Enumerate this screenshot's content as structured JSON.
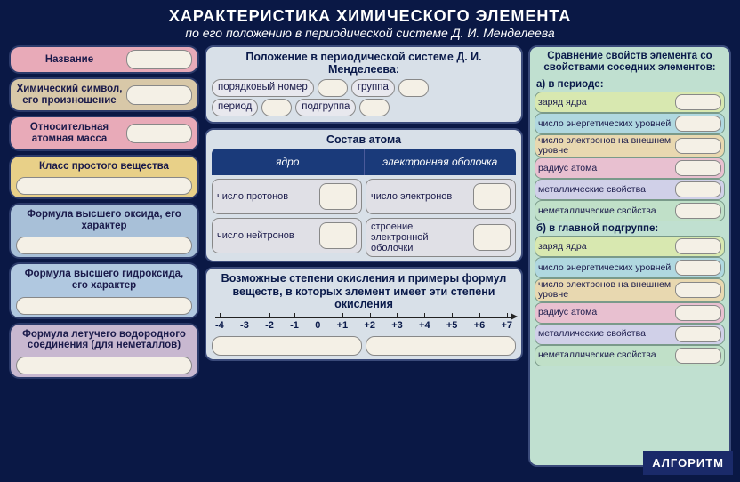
{
  "colors": {
    "page_bg": "#0a1845",
    "panel_bg": "#d8e0e8",
    "right_bg": "#c0e0d0",
    "field_bg": "#f4f0e6",
    "header_nucleus": "#1a3a7a",
    "left_boxes": [
      "#e8aab8",
      "#d8c8a8",
      "#e8d088",
      "#a8c0d8",
      "#b0c8e0",
      "#b8d0a0",
      "#c8b8d0"
    ],
    "right_rows": [
      "#d8e8b0",
      "#b0d8e0",
      "#e8d8b0",
      "#e8c0d0",
      "#d0d0e8",
      "#c0e0c8"
    ]
  },
  "header": {
    "title": "ХАРАКТЕРИСТИКА ХИМИЧЕСКОГО ЭЛЕМЕНТА",
    "subtitle": "по его положению в периодической системе Д. И. Менделеева"
  },
  "left": [
    {
      "title": "Название",
      "has_side_value": true
    },
    {
      "title": "Химический символ, его произношение",
      "has_side_value": true
    },
    {
      "title": "Относительная атомная масса",
      "has_side_value": true
    },
    {
      "title": "Класс простого вещества",
      "has_full_value": true
    },
    {
      "title": "Формула высшего оксида, его характер",
      "has_full_value": true
    },
    {
      "title": "Формула высшего гидроксида, его характер",
      "has_full_value": true
    },
    {
      "title": "Формула летучего водородного соединения (для неметаллов)",
      "has_full_value": true
    }
  ],
  "position": {
    "title": "Положение в периодической системе Д. И. Менделеева:",
    "rows": [
      [
        "порядковый номер",
        "группа"
      ],
      [
        "период",
        "подгруппа"
      ]
    ]
  },
  "atom": {
    "title": "Состав атома",
    "cols": [
      "ядро",
      "электронная оболочка"
    ],
    "cells": [
      [
        "число протонов",
        "число электронов"
      ],
      [
        "число нейтронов",
        "строение электронной оболочки"
      ]
    ]
  },
  "oxid": {
    "title": "Возможные степени окисления и примеры формул веществ, в которых элемент имеет эти степени окисления",
    "scale": [
      "-4",
      "-3",
      "-2",
      "-1",
      "0",
      "+1",
      "+2",
      "+3",
      "+4",
      "+5",
      "+6",
      "+7"
    ]
  },
  "right": {
    "title": "Сравнение свойств элемента со свойствами соседних элементов:",
    "groups": [
      {
        "sub": "а) в периоде:",
        "rows": [
          "заряд ядра",
          "число энергетических уровней",
          "число электронов на внешнем уровне",
          "радиус атома",
          "металлические свойства",
          "неметаллические свойства"
        ]
      },
      {
        "sub": "б) в главной подгруппе:",
        "rows": [
          "заряд ядра",
          "число энергетических уровней",
          "число электронов на внешнем уровне",
          "радиус атома",
          "металлические свойства",
          "неметаллические свойства"
        ]
      }
    ]
  },
  "footer": {
    "label": "АЛГОРИТМ"
  }
}
